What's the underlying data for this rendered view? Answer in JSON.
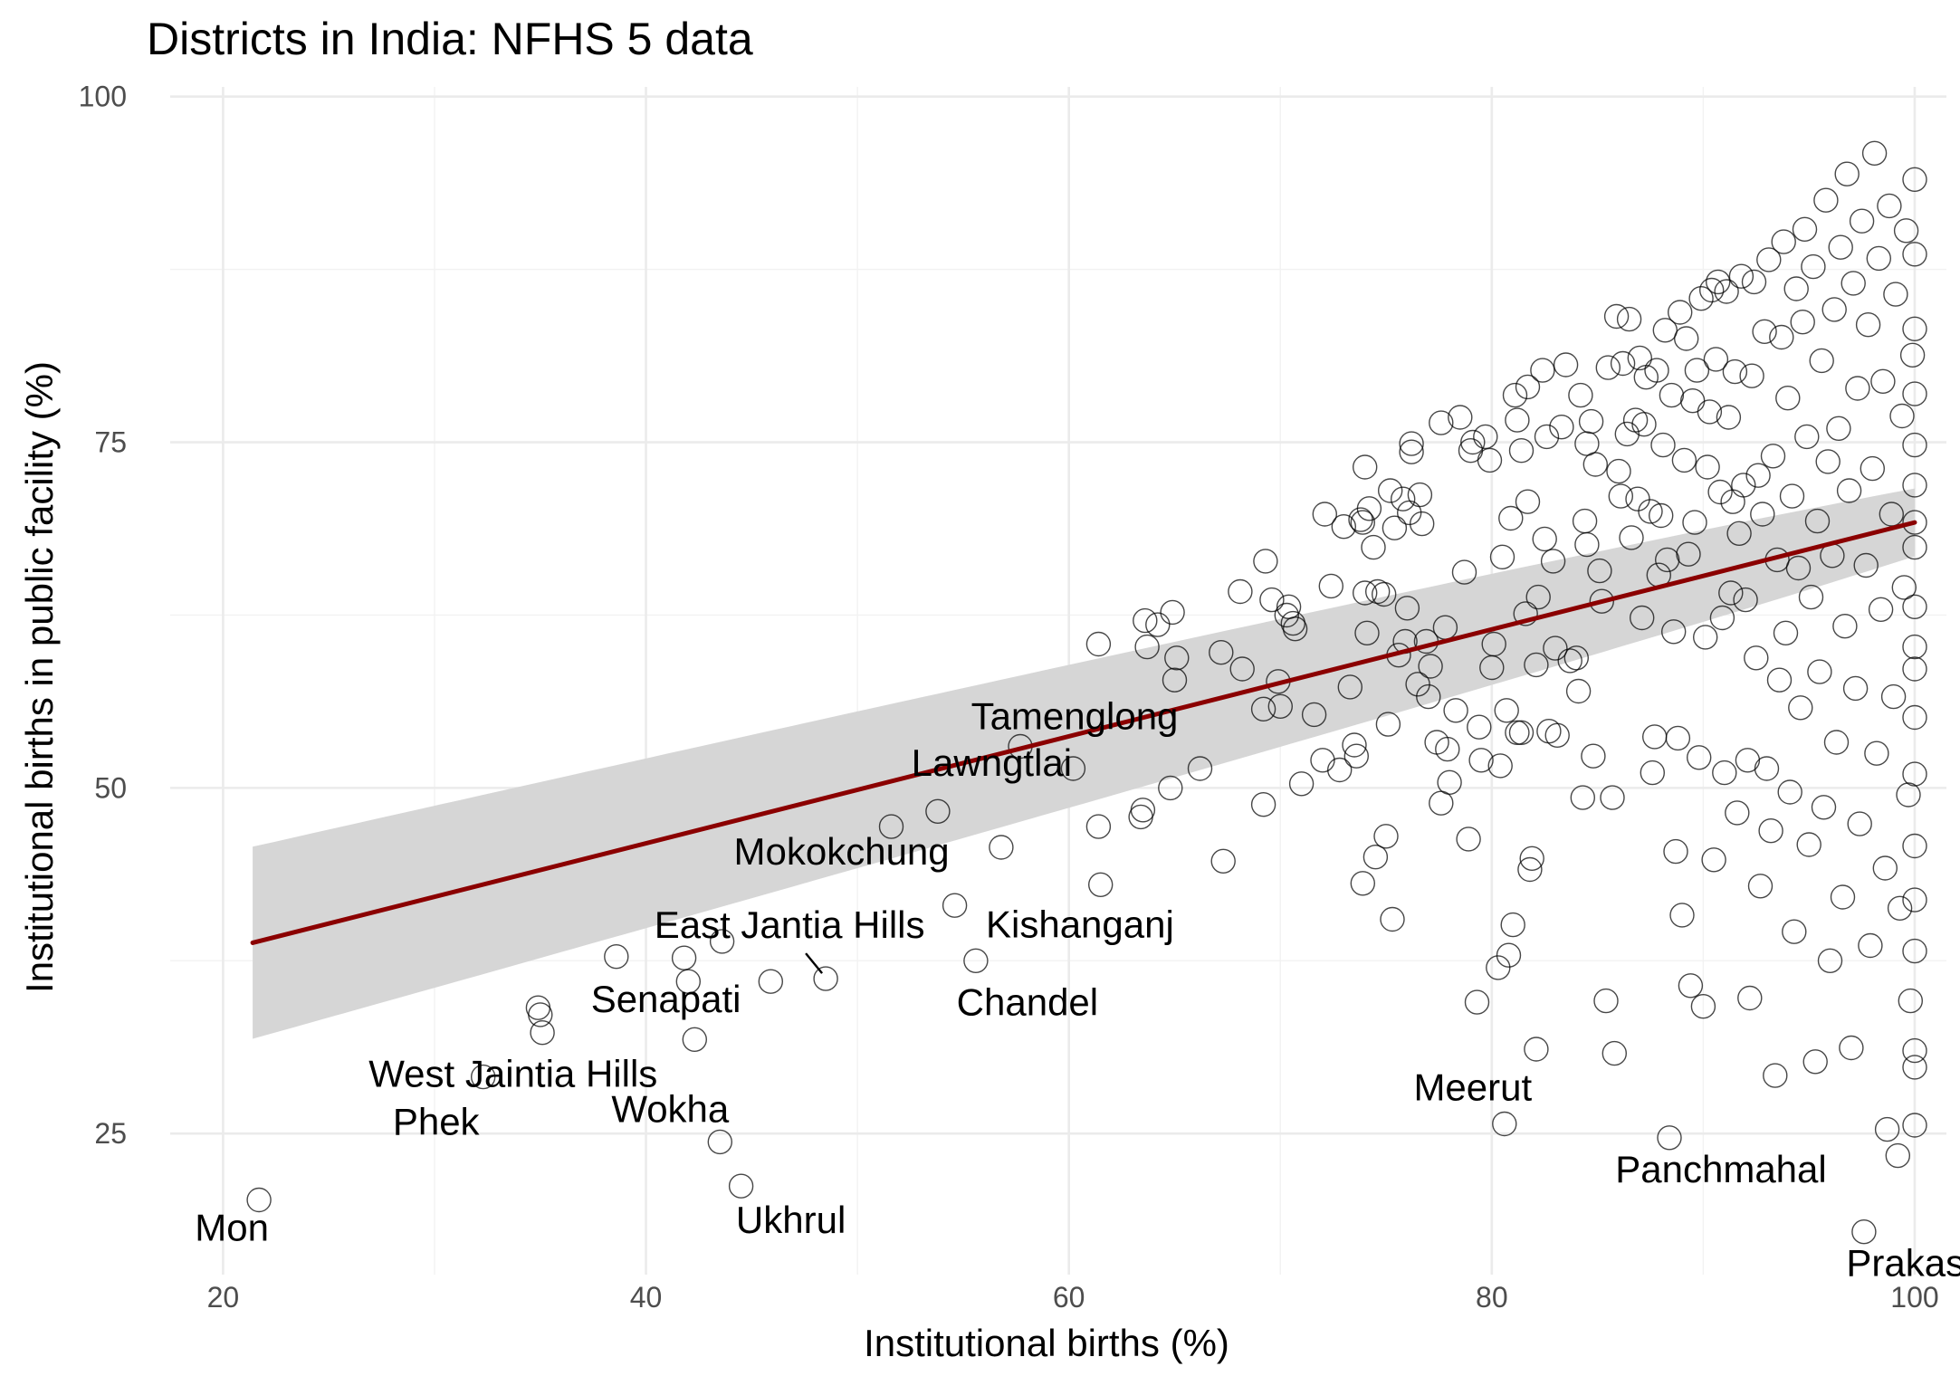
{
  "chart_data": {
    "type": "scatter",
    "title": "Districts in India: NFHS 5 data",
    "xlabel": "Institutional births (%)",
    "ylabel": "Institutional births in public facility (%)",
    "xlim": [
      17.5,
      101.5
    ],
    "ylim": [
      14.8,
      100.7
    ],
    "xticks": [
      20,
      40,
      60,
      80,
      100
    ],
    "yticks": [
      25,
      50,
      75,
      100
    ],
    "grid": true,
    "trend": {
      "type": "linear",
      "color": "#8b0000",
      "band_color": "#d6d6d6",
      "x": [
        21.4,
        100
      ],
      "y": [
        38.8,
        69.2
      ],
      "ci_lower": [
        32.2,
        68.0
      ],
      "ci_upper": [
        45.3,
        70.4
      ],
      "ci_at_x60": [
        52.6,
        56.1
      ]
    },
    "labeled_points": [
      {
        "label": "Mon",
        "x": 21.7,
        "y": 20.2
      },
      {
        "label": "Phek",
        "x": 32.3,
        "y": 29.1
      },
      {
        "label": "West Jaintia Hills",
        "x": 35.0,
        "y": 32.3
      },
      {
        "label": "Senapati",
        "x": 41.8,
        "y": 37.7
      },
      {
        "label": "East Jantia Hills",
        "x": 48.5,
        "y": 36.2
      },
      {
        "label": "Wokha",
        "x": 43.5,
        "y": 24.4
      },
      {
        "label": "Ukhrul",
        "x": 44.5,
        "y": 21.2
      },
      {
        "label": "Mokokchung",
        "x": 54.6,
        "y": 41.5
      },
      {
        "label": "Kishanganj",
        "x": 55.6,
        "y": 37.5
      },
      {
        "label": "Chandel",
        "x": 55.6,
        "y": 37.5
      },
      {
        "label": "Tamenglong",
        "x": 57.7,
        "y": 53.0
      },
      {
        "label": "Lawngtlai",
        "x": 60.2,
        "y": 51.4
      },
      {
        "label": "Meerut",
        "x": 80.6,
        "y": 25.7
      },
      {
        "label": "Panchmahal",
        "x": 88.4,
        "y": 24.7
      },
      {
        "label": "Prakasam",
        "x": 97.6,
        "y": 17.9
      }
    ],
    "points": [
      [
        21.7,
        20.2
      ],
      [
        32.3,
        29.1
      ],
      [
        34.9,
        34.1
      ],
      [
        35.0,
        33.6
      ],
      [
        35.1,
        32.3
      ],
      [
        38.6,
        37.8
      ],
      [
        41.8,
        37.7
      ],
      [
        42.0,
        36.0
      ],
      [
        42.3,
        31.8
      ],
      [
        43.5,
        24.4
      ],
      [
        43.6,
        38.9
      ],
      [
        44.5,
        21.2
      ],
      [
        45.9,
        36.0
      ],
      [
        48.5,
        36.2
      ],
      [
        51.6,
        47.2
      ],
      [
        53.8,
        48.3
      ],
      [
        54.6,
        41.5
      ],
      [
        55.6,
        37.5
      ],
      [
        56.8,
        45.7
      ],
      [
        57.7,
        53.0
      ],
      [
        60.2,
        51.4
      ],
      [
        61.4,
        60.4
      ],
      [
        61.4,
        47.2
      ],
      [
        61.5,
        43.0
      ],
      [
        63.4,
        47.9
      ],
      [
        63.5,
        48.4
      ],
      [
        63.6,
        62.1
      ],
      [
        63.7,
        60.2
      ],
      [
        64.2,
        61.8
      ],
      [
        64.8,
        50.0
      ],
      [
        64.9,
        62.7
      ],
      [
        65.0,
        57.8
      ],
      [
        65.1,
        59.4
      ],
      [
        66.2,
        51.4
      ],
      [
        67.3,
        44.7
      ],
      [
        67.2,
        59.8
      ],
      [
        68.1,
        64.2
      ],
      [
        68.2,
        58.6
      ],
      [
        69.2,
        55.7
      ],
      [
        69.6,
        63.6
      ],
      [
        69.2,
        48.8
      ],
      [
        69.3,
        66.4
      ],
      [
        69.9,
        57.7
      ],
      [
        70.0,
        55.9
      ],
      [
        70.3,
        62.5
      ],
      [
        70.4,
        63.1
      ],
      [
        70.6,
        61.9
      ],
      [
        70.7,
        61.5
      ],
      [
        71.0,
        50.3
      ],
      [
        71.6,
        55.3
      ],
      [
        72.0,
        52.0
      ],
      [
        72.1,
        69.8
      ],
      [
        72.4,
        64.6
      ],
      [
        72.8,
        51.3
      ],
      [
        73.0,
        68.9
      ],
      [
        73.3,
        57.3
      ],
      [
        73.5,
        53.1
      ],
      [
        73.6,
        52.3
      ],
      [
        73.8,
        69.4
      ],
      [
        73.9,
        69.2
      ],
      [
        73.9,
        43.1
      ],
      [
        74.0,
        64.1
      ],
      [
        74.0,
        73.2
      ],
      [
        74.1,
        61.2
      ],
      [
        74.2,
        70.2
      ],
      [
        74.4,
        67.4
      ],
      [
        74.5,
        45.0
      ],
      [
        74.6,
        64.2
      ],
      [
        74.9,
        64.0
      ],
      [
        75.0,
        46.5
      ],
      [
        75.1,
        54.6
      ],
      [
        75.2,
        71.5
      ],
      [
        75.3,
        40.5
      ],
      [
        75.4,
        68.8
      ],
      [
        75.6,
        59.6
      ],
      [
        75.8,
        70.9
      ],
      [
        75.9,
        60.6
      ],
      [
        76.0,
        63.0
      ],
      [
        76.1,
        69.9
      ],
      [
        76.2,
        74.3
      ],
      [
        76.2,
        74.9
      ],
      [
        76.5,
        57.5
      ],
      [
        76.6,
        71.2
      ],
      [
        76.7,
        69.1
      ],
      [
        76.9,
        60.6
      ],
      [
        77.0,
        56.6
      ],
      [
        77.1,
        58.8
      ],
      [
        77.4,
        53.3
      ],
      [
        77.6,
        76.4
      ],
      [
        77.8,
        61.6
      ],
      [
        77.6,
        48.9
      ],
      [
        77.9,
        52.8
      ],
      [
        78.0,
        50.4
      ],
      [
        78.3,
        55.6
      ],
      [
        78.5,
        76.8
      ],
      [
        78.7,
        65.6
      ],
      [
        78.9,
        46.3
      ],
      [
        79.0,
        74.4
      ],
      [
        79.1,
        75.0
      ],
      [
        79.4,
        54.4
      ],
      [
        79.3,
        34.5
      ],
      [
        79.5,
        52.0
      ],
      [
        79.7,
        75.4
      ],
      [
        79.9,
        73.7
      ],
      [
        80.0,
        58.7
      ],
      [
        80.1,
        60.4
      ],
      [
        80.3,
        37.0
      ],
      [
        80.4,
        51.6
      ],
      [
        80.5,
        66.7
      ],
      [
        80.6,
        25.7
      ],
      [
        80.7,
        55.6
      ],
      [
        80.8,
        37.9
      ],
      [
        80.9,
        69.5
      ],
      [
        81.0,
        40.1
      ],
      [
        81.1,
        78.4
      ],
      [
        81.2,
        54.0
      ],
      [
        81.2,
        76.6
      ],
      [
        81.4,
        74.4
      ],
      [
        81.4,
        54.0
      ],
      [
        81.6,
        62.6
      ],
      [
        81.7,
        79.0
      ],
      [
        81.7,
        70.7
      ],
      [
        81.8,
        44.1
      ],
      [
        81.9,
        44.9
      ],
      [
        82.1,
        31.1
      ],
      [
        82.1,
        58.9
      ],
      [
        82.2,
        63.8
      ],
      [
        82.4,
        80.2
      ],
      [
        82.5,
        68.0
      ],
      [
        82.6,
        75.4
      ],
      [
        82.7,
        54.1
      ],
      [
        82.9,
        66.4
      ],
      [
        83.0,
        60.1
      ],
      [
        83.1,
        53.8
      ],
      [
        83.3,
        76.1
      ],
      [
        83.5,
        80.6
      ],
      [
        83.7,
        59.2
      ],
      [
        84.0,
        59.4
      ],
      [
        84.1,
        57.0
      ],
      [
        84.2,
        78.4
      ],
      [
        84.3,
        49.3
      ],
      [
        84.4,
        69.3
      ],
      [
        84.5,
        67.6
      ],
      [
        84.5,
        74.9
      ],
      [
        84.7,
        76.5
      ],
      [
        84.8,
        52.3
      ],
      [
        84.9,
        73.4
      ],
      [
        85.1,
        65.7
      ],
      [
        85.2,
        63.5
      ],
      [
        85.4,
        34.6
      ],
      [
        85.5,
        80.4
      ],
      [
        85.7,
        49.3
      ],
      [
        85.8,
        30.8
      ],
      [
        85.9,
        84.1
      ],
      [
        86.0,
        72.9
      ],
      [
        86.1,
        71.1
      ],
      [
        86.2,
        80.7
      ],
      [
        86.4,
        75.6
      ],
      [
        86.5,
        83.9
      ],
      [
        86.6,
        68.1
      ],
      [
        86.8,
        76.6
      ],
      [
        86.9,
        70.9
      ],
      [
        87.0,
        81.1
      ],
      [
        87.1,
        62.3
      ],
      [
        87.2,
        76.3
      ],
      [
        87.3,
        79.7
      ],
      [
        87.5,
        70.0
      ],
      [
        87.6,
        51.1
      ],
      [
        87.7,
        53.7
      ],
      [
        87.8,
        80.2
      ],
      [
        87.9,
        65.4
      ],
      [
        88.0,
        69.7
      ],
      [
        88.1,
        74.8
      ],
      [
        88.2,
        83.1
      ],
      [
        88.3,
        66.5
      ],
      [
        88.4,
        24.7
      ],
      [
        88.5,
        78.4
      ],
      [
        88.6,
        61.3
      ],
      [
        88.7,
        45.4
      ],
      [
        88.8,
        53.6
      ],
      [
        88.9,
        84.4
      ],
      [
        89.0,
        40.8
      ],
      [
        89.1,
        73.7
      ],
      [
        89.2,
        82.5
      ],
      [
        89.3,
        66.9
      ],
      [
        89.4,
        35.7
      ],
      [
        89.5,
        78.0
      ],
      [
        89.6,
        69.2
      ],
      [
        89.7,
        80.2
      ],
      [
        89.8,
        52.2
      ],
      [
        89.9,
        85.4
      ],
      [
        90.0,
        34.2
      ],
      [
        90.1,
        60.9
      ],
      [
        90.2,
        73.2
      ],
      [
        90.3,
        77.2
      ],
      [
        90.4,
        86.0
      ],
      [
        90.5,
        44.8
      ],
      [
        90.6,
        81.0
      ],
      [
        90.7,
        86.6
      ],
      [
        90.8,
        71.4
      ],
      [
        90.9,
        62.3
      ],
      [
        91.0,
        51.1
      ],
      [
        91.1,
        85.9
      ],
      [
        91.2,
        76.8
      ],
      [
        91.3,
        64.1
      ],
      [
        91.4,
        70.7
      ],
      [
        91.5,
        80.1
      ],
      [
        91.6,
        48.2
      ],
      [
        91.7,
        68.4
      ],
      [
        91.8,
        87.0
      ],
      [
        91.9,
        71.9
      ],
      [
        92.0,
        63.6
      ],
      [
        92.1,
        52.0
      ],
      [
        92.2,
        34.8
      ],
      [
        92.3,
        79.8
      ],
      [
        92.4,
        86.6
      ],
      [
        92.5,
        59.4
      ],
      [
        92.6,
        72.6
      ],
      [
        92.7,
        42.9
      ],
      [
        92.8,
        69.8
      ],
      [
        92.9,
        83.0
      ],
      [
        93.0,
        51.4
      ],
      [
        93.1,
        88.2
      ],
      [
        93.2,
        46.9
      ],
      [
        93.3,
        74.0
      ],
      [
        93.4,
        29.2
      ],
      [
        93.5,
        66.5
      ],
      [
        93.6,
        57.8
      ],
      [
        93.7,
        82.6
      ],
      [
        93.8,
        89.5
      ],
      [
        93.9,
        61.2
      ],
      [
        94.0,
        78.2
      ],
      [
        94.1,
        49.7
      ],
      [
        94.2,
        71.1
      ],
      [
        94.3,
        39.6
      ],
      [
        94.4,
        86.1
      ],
      [
        94.5,
        65.9
      ],
      [
        94.6,
        55.8
      ],
      [
        94.7,
        83.7
      ],
      [
        94.8,
        90.4
      ],
      [
        94.9,
        75.4
      ],
      [
        95.0,
        45.9
      ],
      [
        95.1,
        63.8
      ],
      [
        95.2,
        87.7
      ],
      [
        95.3,
        30.2
      ],
      [
        95.4,
        69.3
      ],
      [
        95.5,
        58.4
      ],
      [
        95.6,
        80.9
      ],
      [
        95.7,
        48.6
      ],
      [
        95.8,
        92.5
      ],
      [
        95.9,
        73.6
      ],
      [
        96.0,
        37.5
      ],
      [
        96.1,
        66.8
      ],
      [
        96.2,
        84.6
      ],
      [
        96.3,
        53.3
      ],
      [
        96.4,
        76.0
      ],
      [
        96.5,
        89.1
      ],
      [
        96.6,
        42.1
      ],
      [
        96.7,
        61.7
      ],
      [
        96.8,
        94.4
      ],
      [
        96.9,
        71.5
      ],
      [
        97.0,
        31.2
      ],
      [
        97.1,
        86.5
      ],
      [
        97.2,
        57.2
      ],
      [
        97.3,
        78.9
      ],
      [
        97.4,
        47.4
      ],
      [
        97.5,
        91.0
      ],
      [
        97.6,
        17.9
      ],
      [
        97.7,
        66.1
      ],
      [
        97.8,
        83.5
      ],
      [
        97.9,
        38.6
      ],
      [
        98.0,
        73.1
      ],
      [
        98.1,
        95.9
      ],
      [
        98.2,
        52.5
      ],
      [
        98.3,
        88.3
      ],
      [
        98.4,
        62.9
      ],
      [
        98.5,
        79.4
      ],
      [
        98.6,
        44.2
      ],
      [
        98.7,
        25.3
      ],
      [
        98.8,
        92.1
      ],
      [
        98.9,
        69.8
      ],
      [
        99.0,
        56.6
      ],
      [
        99.1,
        85.7
      ],
      [
        99.2,
        23.4
      ],
      [
        99.3,
        41.3
      ],
      [
        99.4,
        76.9
      ],
      [
        99.5,
        64.5
      ],
      [
        99.6,
        90.3
      ],
      [
        99.7,
        49.5
      ],
      [
        99.8,
        34.6
      ],
      [
        99.9,
        81.3
      ],
      [
        100,
        71.9
      ],
      [
        100,
        60.2
      ],
      [
        100,
        94.0
      ],
      [
        100,
        29.8
      ],
      [
        100,
        55.1
      ],
      [
        100,
        83.2
      ],
      [
        100,
        45.8
      ],
      [
        100,
        67.4
      ],
      [
        100,
        25.6
      ],
      [
        100,
        74.8
      ],
      [
        100,
        38.2
      ],
      [
        100,
        88.6
      ],
      [
        100,
        58.6
      ],
      [
        100,
        51.0
      ],
      [
        100,
        63.1
      ],
      [
        100,
        41.9
      ],
      [
        100,
        69.2
      ],
      [
        100,
        31.0
      ],
      [
        100,
        78.5
      ]
    ]
  }
}
